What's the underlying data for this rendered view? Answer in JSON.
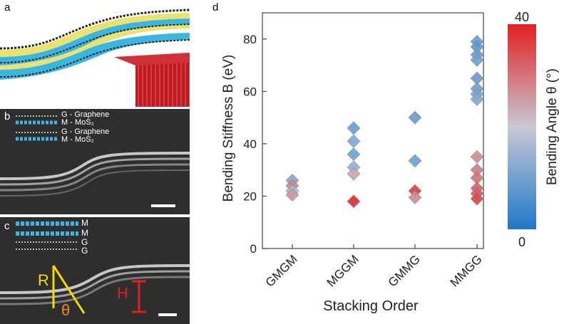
{
  "panels": {
    "a": {
      "label": "a"
    },
    "b": {
      "label": "b",
      "legend": [
        "G - Graphene",
        "M - MoS₂",
        "G - Graphene",
        "M - MoS₂"
      ]
    },
    "c": {
      "label": "c",
      "legend": [
        "M",
        "M",
        "G",
        "G"
      ],
      "annot_R": "R",
      "annot_theta": "θ",
      "annot_H": "H"
    },
    "d": {
      "label": "d"
    }
  },
  "colors": {
    "low": "#1f78c8",
    "mid": "#c9c9d4",
    "high": "#e02020",
    "mos2": "#3bb6e0",
    "sulfur": "#f0e020",
    "substrate": "#c8202a",
    "annot_yellow": "#f5d800",
    "annot_orange": "#f08a1c",
    "annot_red": "#e02020"
  },
  "chart_data": {
    "type": "scatter",
    "title": "",
    "xlabel": "Stacking Order",
    "ylabel": "Bending Stiffness B (eV)",
    "categories": [
      "GMGM",
      "MGGM",
      "GMMG",
      "MMGG"
    ],
    "ylim": [
      0,
      90
    ],
    "yticks": [
      0,
      20,
      40,
      60,
      80
    ],
    "grid": false,
    "colorbar": {
      "label": "Bending Angle θ (°)",
      "min": 0,
      "max": 40,
      "min_label": "0",
      "max_label": "40"
    },
    "points": [
      {
        "category": "GMGM",
        "y": 26,
        "angle": 12
      },
      {
        "category": "GMGM",
        "y": 24,
        "angle": 28
      },
      {
        "category": "GMGM",
        "y": 22,
        "angle": 16
      },
      {
        "category": "GMGM",
        "y": 20.5,
        "angle": 26
      },
      {
        "category": "MGGM",
        "y": 46,
        "angle": 9
      },
      {
        "category": "MGGM",
        "y": 41,
        "angle": 12
      },
      {
        "category": "MGGM",
        "y": 36,
        "angle": 10
      },
      {
        "category": "MGGM",
        "y": 31,
        "angle": 14
      },
      {
        "category": "MGGM",
        "y": 28.5,
        "angle": 24
      },
      {
        "category": "MGGM",
        "y": 18,
        "angle": 38
      },
      {
        "category": "GMMG",
        "y": 50,
        "angle": 9
      },
      {
        "category": "GMMG",
        "y": 33.5,
        "angle": 10
      },
      {
        "category": "GMMG",
        "y": 22,
        "angle": 36
      },
      {
        "category": "GMMG",
        "y": 19.5,
        "angle": 27
      },
      {
        "category": "MMGG",
        "y": 79,
        "angle": 9
      },
      {
        "category": "MMGG",
        "y": 77,
        "angle": 8
      },
      {
        "category": "MMGG",
        "y": 74,
        "angle": 9
      },
      {
        "category": "MMGG",
        "y": 72,
        "angle": 10
      },
      {
        "category": "MMGG",
        "y": 65,
        "angle": 9
      },
      {
        "category": "MMGG",
        "y": 61,
        "angle": 10
      },
      {
        "category": "MMGG",
        "y": 59,
        "angle": 11
      },
      {
        "category": "MMGG",
        "y": 57,
        "angle": 12
      },
      {
        "category": "MMGG",
        "y": 35,
        "angle": 27
      },
      {
        "category": "MMGG",
        "y": 30,
        "angle": 29
      },
      {
        "category": "MMGG",
        "y": 27,
        "angle": 30
      },
      {
        "category": "MMGG",
        "y": 23,
        "angle": 32
      },
      {
        "category": "MMGG",
        "y": 21,
        "angle": 33
      },
      {
        "category": "MMGG",
        "y": 19,
        "angle": 35
      }
    ]
  }
}
